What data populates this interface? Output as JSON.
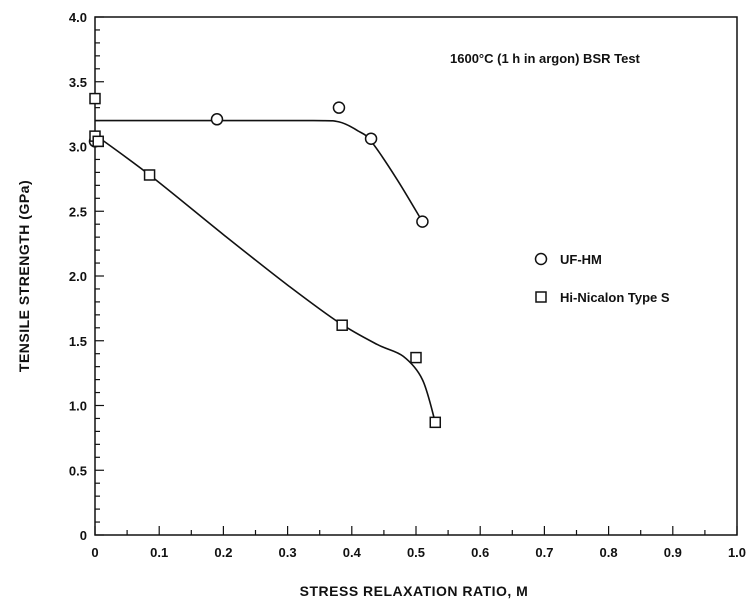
{
  "chart_data": {
    "type": "scatter",
    "title": "",
    "xlabel": "STRESS RELAXATION RATIO,  M",
    "ylabel": "TENSILE STRENGTH  (GPa)",
    "xlim": [
      0,
      1.0
    ],
    "ylim": [
      0,
      4.0
    ],
    "xticks": [
      "0",
      "0.1",
      "0.2",
      "0.3",
      "0.4",
      "0.5",
      "0.6",
      "0.7",
      "0.8",
      "0.9",
      "1.0"
    ],
    "yticks": [
      "0",
      "0.5",
      "1.0",
      "1.5",
      "2.0",
      "2.5",
      "3.0",
      "3.5",
      "4.0"
    ],
    "annotation": "1600°C (1 h in argon)  BSR Test",
    "legend_position": "right",
    "grid": false,
    "series": [
      {
        "name": "UF-HM",
        "marker": "circle",
        "points": [
          [
            0.0,
            3.04
          ],
          [
            0.19,
            3.21
          ],
          [
            0.38,
            3.3
          ],
          [
            0.43,
            3.06
          ],
          [
            0.51,
            2.42
          ]
        ],
        "curve": [
          [
            0.0,
            3.2
          ],
          [
            0.2,
            3.2
          ],
          [
            0.34,
            3.2
          ],
          [
            0.38,
            3.19
          ],
          [
            0.41,
            3.12
          ],
          [
            0.43,
            3.04
          ],
          [
            0.47,
            2.75
          ],
          [
            0.51,
            2.42
          ]
        ]
      },
      {
        "name": "Hi-Nicalon Type S",
        "marker": "square",
        "points": [
          [
            0.0,
            3.37
          ],
          [
            0.0,
            3.08
          ],
          [
            0.005,
            3.04
          ],
          [
            0.085,
            2.78
          ],
          [
            0.385,
            1.62
          ],
          [
            0.5,
            1.37
          ],
          [
            0.53,
            0.87
          ]
        ],
        "curve": [
          [
            0.0,
            3.09
          ],
          [
            0.085,
            2.78
          ],
          [
            0.2,
            2.32
          ],
          [
            0.3,
            1.93
          ],
          [
            0.38,
            1.64
          ],
          [
            0.44,
            1.47
          ],
          [
            0.48,
            1.38
          ],
          [
            0.51,
            1.2
          ],
          [
            0.53,
            0.87
          ]
        ]
      }
    ]
  }
}
